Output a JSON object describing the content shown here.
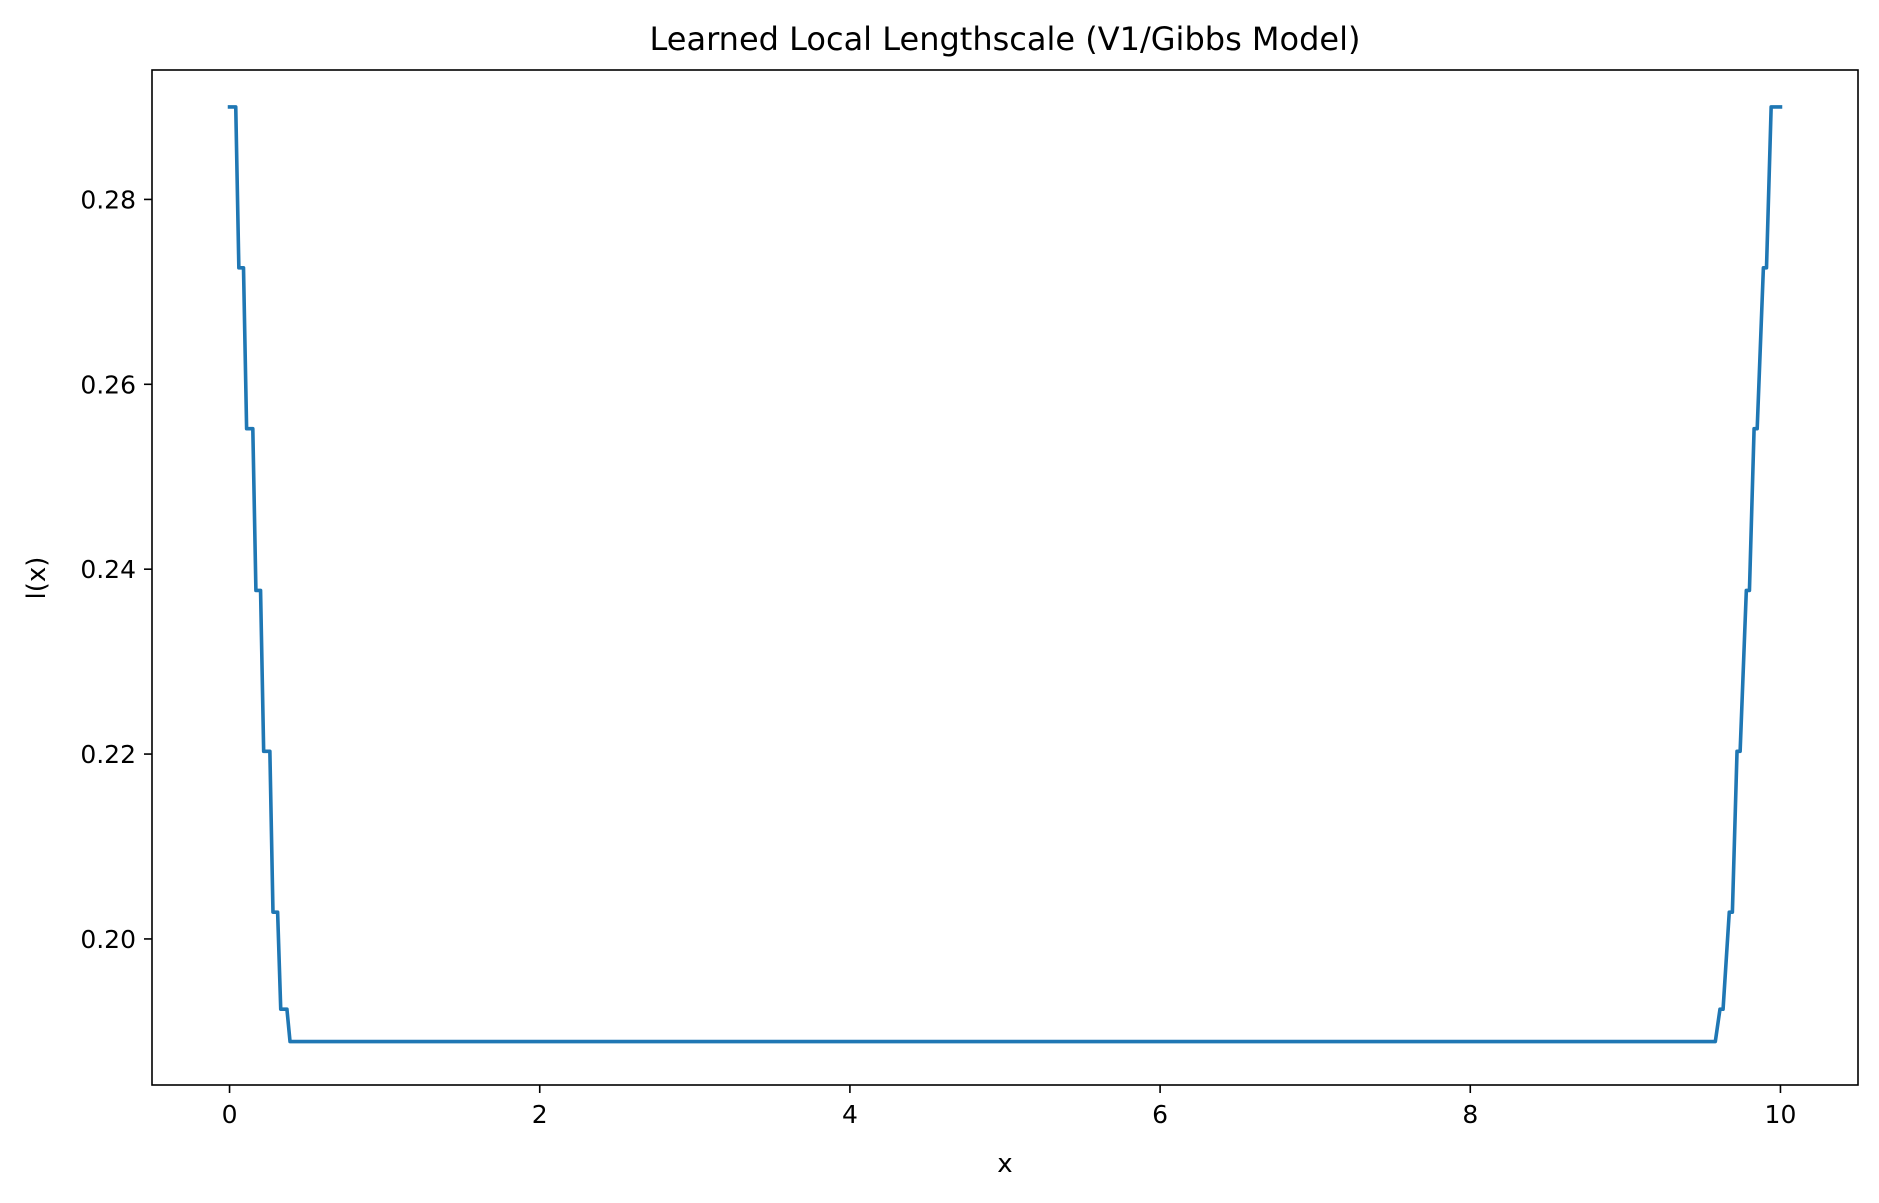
{
  "chart_data": {
    "type": "line",
    "title": "Learned Local Lengthscale (V1/Gibbs Model)",
    "xlabel": "x",
    "ylabel": "l(x)",
    "xlim": [
      -0.5,
      10.5
    ],
    "ylim": [
      0.1842,
      0.294
    ],
    "xticks": [
      0,
      2,
      4,
      6,
      8,
      10
    ],
    "xtick_labels": [
      "0",
      "2",
      "4",
      "6",
      "8",
      "10"
    ],
    "yticks": [
      0.2,
      0.22,
      0.24,
      0.26,
      0.28
    ],
    "ytick_labels": [
      "0.20",
      "0.22",
      "0.24",
      "0.26",
      "0.28"
    ],
    "grid": false,
    "legend": "none",
    "series": [
      {
        "color": "#1f77b4",
        "x": [
          0.0,
          0.04,
          0.06,
          0.09,
          0.11,
          0.15,
          0.17,
          0.2,
          0.22,
          0.26,
          0.28,
          0.31,
          0.33,
          0.37,
          0.39,
          0.42,
          0.44,
          9.56,
          9.58,
          9.61,
          9.63,
          9.67,
          9.69,
          9.72,
          9.74,
          9.78,
          9.8,
          9.83,
          9.85,
          9.89,
          9.91,
          9.94,
          9.96,
          10.0
        ],
        "y": [
          0.29,
          0.29,
          0.2726,
          0.2726,
          0.2552,
          0.2552,
          0.2377,
          0.2377,
          0.2203,
          0.2203,
          0.2029,
          0.2029,
          0.1924,
          0.1924,
          0.1889,
          0.1889,
          0.1889,
          0.1889,
          0.1889,
          0.1924,
          0.1924,
          0.2029,
          0.2029,
          0.2203,
          0.2203,
          0.2377,
          0.2377,
          0.2552,
          0.2552,
          0.2726,
          0.2726,
          0.29,
          0.29,
          0.29
        ]
      }
    ]
  }
}
